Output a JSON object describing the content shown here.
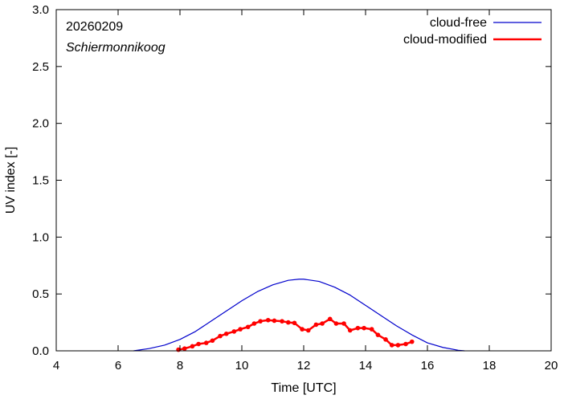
{
  "chart_data": {
    "type": "line",
    "title": "",
    "xlabel": "Time  [UTC]",
    "ylabel": "UV index  [-]",
    "xlim": [
      4,
      20
    ],
    "ylim": [
      0,
      3.0
    ],
    "xticks": [
      "4",
      "6",
      "8",
      "10",
      "12",
      "14",
      "16",
      "18",
      "20"
    ],
    "yticks": [
      "0.0",
      "0.5",
      "1.0",
      "1.5",
      "2.0",
      "2.5",
      "3.0"
    ],
    "annotations": {
      "date": "20260209",
      "location": "Schiermonnikoog"
    },
    "legend_position": "top-right",
    "series": [
      {
        "name": "cloud-free",
        "color": "#0000cc",
        "markers": false,
        "x": [
          6.5,
          7.0,
          7.5,
          8.0,
          8.5,
          9.0,
          9.5,
          10.0,
          10.5,
          11.0,
          11.5,
          11.85,
          12.0,
          12.5,
          13.0,
          13.5,
          14.0,
          14.5,
          15.0,
          15.5,
          16.0,
          16.5,
          17.0,
          17.2
        ],
        "y": [
          0.0,
          0.02,
          0.05,
          0.1,
          0.17,
          0.26,
          0.35,
          0.44,
          0.52,
          0.58,
          0.62,
          0.63,
          0.63,
          0.61,
          0.56,
          0.49,
          0.4,
          0.31,
          0.22,
          0.14,
          0.07,
          0.03,
          0.005,
          0.0
        ]
      },
      {
        "name": "cloud-modified",
        "color": "#ff0000",
        "markers": true,
        "x": [
          7.95,
          8.15,
          8.4,
          8.6,
          8.85,
          9.05,
          9.3,
          9.5,
          9.75,
          9.95,
          10.2,
          10.4,
          10.6,
          10.85,
          11.05,
          11.3,
          11.5,
          11.7,
          11.95,
          12.15,
          12.4,
          12.6,
          12.85,
          13.05,
          13.3,
          13.5,
          13.75,
          13.95,
          14.2,
          14.4,
          14.65,
          14.85,
          15.05,
          15.3,
          15.5
        ],
        "y": [
          0.01,
          0.02,
          0.04,
          0.06,
          0.07,
          0.09,
          0.13,
          0.15,
          0.17,
          0.19,
          0.21,
          0.24,
          0.26,
          0.27,
          0.265,
          0.26,
          0.25,
          0.245,
          0.19,
          0.18,
          0.23,
          0.24,
          0.28,
          0.24,
          0.24,
          0.18,
          0.2,
          0.2,
          0.19,
          0.14,
          0.1,
          0.05,
          0.05,
          0.06,
          0.08
        ]
      }
    ]
  }
}
